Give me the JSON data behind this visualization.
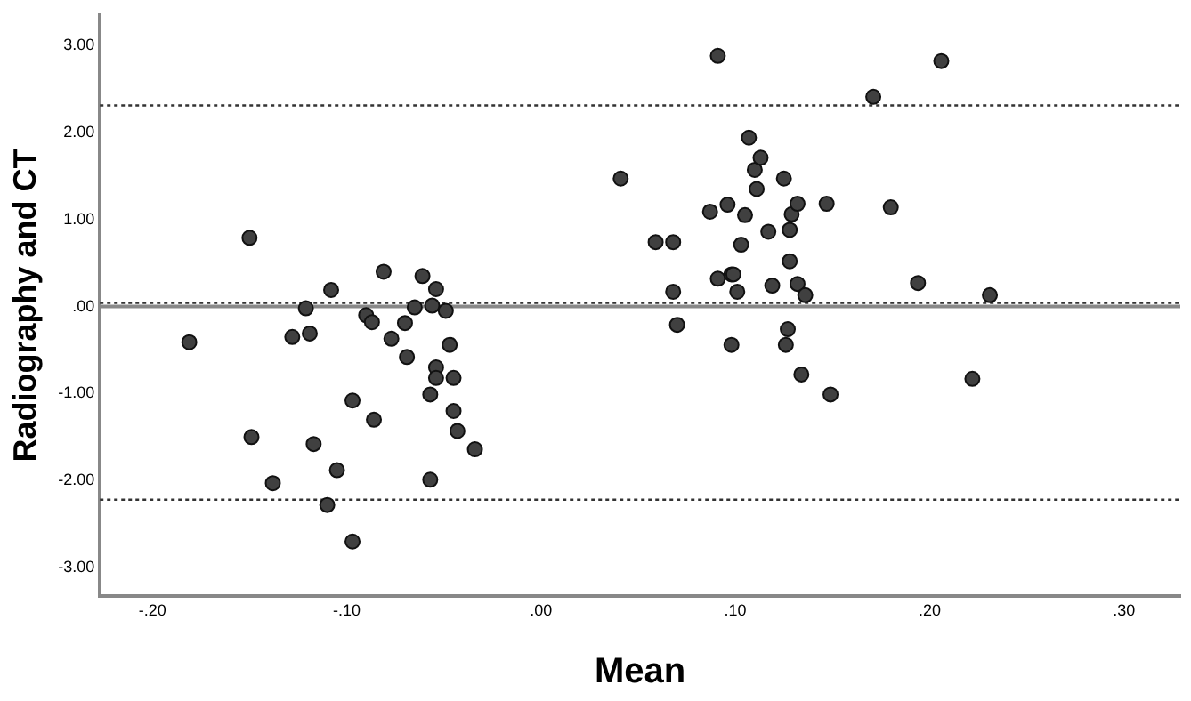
{
  "chart_data": {
    "type": "scatter",
    "xlabel": "Mean",
    "ylabel": "Radiography and CT",
    "marker": "circle",
    "grid": false,
    "legend": false,
    "xlim": [
      -0.227,
      0.329
    ],
    "ylim": [
      -3.33,
      3.35
    ],
    "xticks": [
      {
        "value": -0.2,
        "label": "-.20"
      },
      {
        "value": -0.1,
        "label": "-.10"
      },
      {
        "value": 0,
        "label": ".00"
      },
      {
        "value": 0.1,
        "label": ".10"
      },
      {
        "value": 0.2,
        "label": ".20"
      },
      {
        "value": 0.3,
        "label": ".30"
      }
    ],
    "yticks": [
      {
        "value": -3,
        "label": "-3.00"
      },
      {
        "value": -2,
        "label": "-2.00"
      },
      {
        "value": -1,
        "label": "-1.00"
      },
      {
        "value": 0,
        "label": ".00"
      },
      {
        "value": 1,
        "label": "1.00"
      },
      {
        "value": 2,
        "label": "2.00"
      },
      {
        "value": 3,
        "label": "3.00"
      }
    ],
    "ref_lines": [
      {
        "axis": "y",
        "value": 2.31,
        "line_style": "dotted",
        "color": "#333333"
      },
      {
        "axis": "y",
        "value": -2.22,
        "line_style": "dotted",
        "color": "#333333"
      },
      {
        "axis": "y",
        "value": 0,
        "line_style": "solid",
        "color": "#888888"
      },
      {
        "axis": "y",
        "value": 0.04,
        "line_style": "dotted",
        "color": "#333333"
      }
    ],
    "series": [
      {
        "color": "#404040",
        "x": [
          -0.181,
          -0.15,
          -0.149,
          -0.138,
          -0.128,
          -0.121,
          -0.119,
          -0.117,
          -0.11,
          -0.108,
          -0.105,
          -0.097,
          -0.097,
          -0.09,
          -0.087,
          -0.086,
          -0.081,
          -0.077,
          -0.07,
          -0.069,
          -0.065,
          -0.061,
          -0.057,
          -0.057,
          -0.056,
          -0.054,
          -0.054,
          -0.054,
          -0.049,
          -0.047,
          -0.045,
          -0.045,
          -0.043,
          -0.034,
          0.041,
          0.059,
          0.068,
          0.068,
          0.07,
          0.087,
          0.091,
          0.091,
          0.096,
          0.098,
          0.099,
          0.098,
          0.101,
          0.103,
          0.105,
          0.107,
          0.11,
          0.111,
          0.113,
          0.117,
          0.119,
          0.125,
          0.126,
          0.127,
          0.128,
          0.128,
          0.129,
          0.132,
          0.132,
          0.134,
          0.136,
          0.147,
          0.149,
          0.171,
          0.18,
          0.194,
          0.206,
          0.222,
          0.231
        ],
        "values": [
          -0.41,
          0.79,
          -1.5,
          -2.03,
          -0.35,
          -0.02,
          -0.31,
          -1.58,
          -2.28,
          0.19,
          -1.88,
          -1.08,
          -2.7,
          -0.1,
          -0.18,
          -1.3,
          0.4,
          -0.37,
          -0.19,
          -0.58,
          -0.01,
          0.35,
          -1.01,
          -1.99,
          0.01,
          0.2,
          -0.7,
          -0.82,
          -0.05,
          -0.44,
          -0.82,
          -1.2,
          -1.43,
          -1.64,
          1.47,
          0.74,
          0.74,
          0.17,
          -0.21,
          1.09,
          2.88,
          0.32,
          1.17,
          0.37,
          0.37,
          -0.44,
          0.17,
          0.71,
          1.05,
          1.94,
          1.57,
          1.35,
          1.71,
          0.86,
          0.24,
          1.47,
          -0.44,
          -0.26,
          0.88,
          0.52,
          1.06,
          0.26,
          1.18,
          -0.78,
          0.13,
          1.18,
          -1.01,
          2.41,
          1.14,
          0.27,
          2.82,
          -0.83,
          0.13
        ]
      }
    ]
  }
}
